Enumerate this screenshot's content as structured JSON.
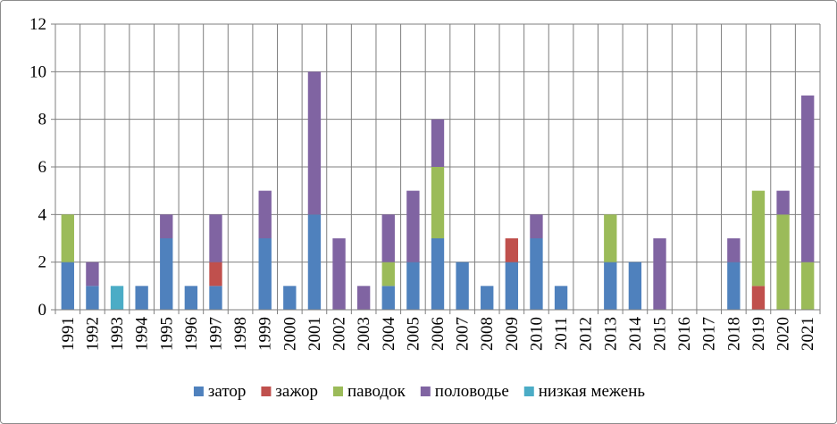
{
  "chart_data": {
    "type": "bar",
    "stacked": true,
    "title": "",
    "xlabel": "",
    "ylabel": "",
    "ylim": [
      0,
      12
    ],
    "yticks": [
      0,
      2,
      4,
      6,
      8,
      10,
      12
    ],
    "grid": true,
    "legend_position": "bottom",
    "categories": [
      "1991",
      "1992",
      "1993",
      "1994",
      "1995",
      "1996",
      "1997",
      "1998",
      "1999",
      "2000",
      "2001",
      "2002",
      "2003",
      "2004",
      "2005",
      "2006",
      "2007",
      "2008",
      "2009",
      "2010",
      "2011",
      "2012",
      "2013",
      "2014",
      "2015",
      "2016",
      "2017",
      "2018",
      "2019",
      "2020",
      "2021"
    ],
    "series": [
      {
        "name": "затор",
        "color": "#4f81bd",
        "values": [
          2,
          1,
          0,
          1,
          3,
          1,
          1,
          0,
          3,
          1,
          4,
          0,
          0,
          1,
          2,
          3,
          2,
          1,
          2,
          3,
          1,
          0,
          2,
          2,
          0,
          0,
          0,
          2,
          0,
          0,
          0
        ]
      },
      {
        "name": "зажор",
        "color": "#c0504d",
        "values": [
          0,
          0,
          0,
          0,
          0,
          0,
          1,
          0,
          0,
          0,
          0,
          0,
          0,
          0,
          0,
          0,
          0,
          0,
          1,
          0,
          0,
          0,
          0,
          0,
          0,
          0,
          0,
          0,
          1,
          0,
          0
        ]
      },
      {
        "name": "паводок",
        "color": "#9bbb59",
        "values": [
          2,
          0,
          0,
          0,
          0,
          0,
          0,
          0,
          0,
          0,
          0,
          0,
          0,
          1,
          0,
          3,
          0,
          0,
          0,
          0,
          0,
          0,
          2,
          0,
          0,
          0,
          0,
          0,
          4,
          4,
          2
        ]
      },
      {
        "name": "половодье",
        "color": "#8064a2",
        "values": [
          0,
          1,
          0,
          0,
          1,
          0,
          2,
          0,
          2,
          0,
          6,
          3,
          1,
          2,
          3,
          2,
          0,
          0,
          0,
          1,
          0,
          0,
          0,
          0,
          3,
          0,
          0,
          1,
          0,
          1,
          7
        ]
      },
      {
        "name": "низкая межень",
        "color": "#4bacc6",
        "values": [
          0,
          0,
          1,
          0,
          0,
          0,
          0,
          0,
          0,
          0,
          0,
          0,
          0,
          0,
          0,
          0,
          0,
          0,
          0,
          0,
          0,
          0,
          0,
          0,
          0,
          0,
          0,
          0,
          0,
          0,
          0
        ]
      }
    ]
  }
}
